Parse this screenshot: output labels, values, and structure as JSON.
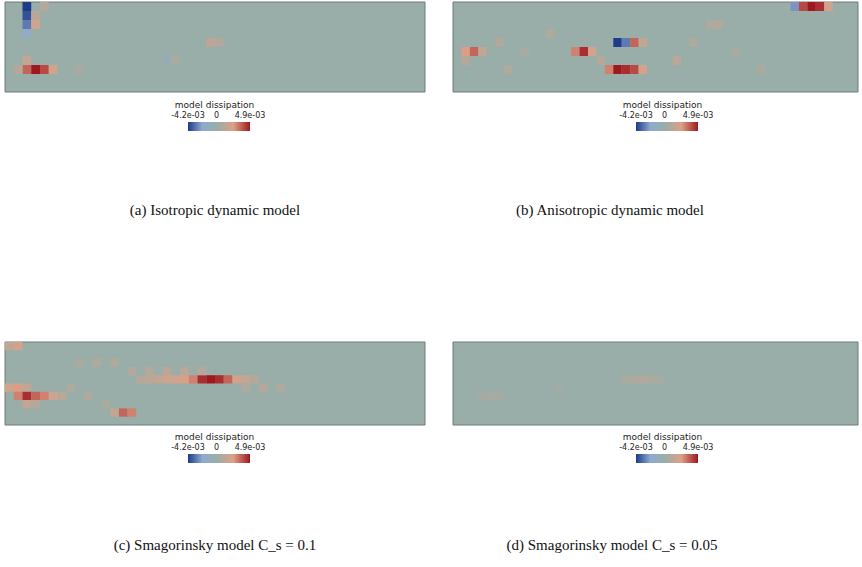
{
  "chart_data": [
    {
      "type": "heatmap",
      "title": "(a) Isotropic dynamic model",
      "xlim": [
        0,
        48
      ],
      "ylim": [
        0,
        10
      ],
      "tick_labels": false,
      "colorbar": {
        "title": "model dissipation",
        "range": [
          -0.0042,
          0.0049
        ],
        "ticks": [
          {
            "value": -0.0042,
            "label": "-4.2e-03"
          },
          0,
          {
            "value": 0.0049,
            "label": "4.9e-03"
          }
        ]
      },
      "cells": [
        [
          2,
          9,
          -0.0042
        ],
        [
          2,
          8,
          -0.0038
        ],
        [
          2,
          7,
          -0.003
        ],
        [
          2,
          6,
          -0.0015
        ],
        [
          3,
          8,
          0.0012
        ],
        [
          3,
          7,
          0.0018
        ],
        [
          4,
          9,
          0.001
        ],
        [
          2,
          2,
          0.0035
        ],
        [
          3,
          2,
          0.0049
        ],
        [
          4,
          2,
          0.004
        ],
        [
          5,
          2,
          0.002
        ],
        [
          2,
          3,
          0.0015
        ],
        [
          1,
          2,
          0.001
        ],
        [
          23,
          5,
          0.0012
        ],
        [
          24,
          5,
          0.0008
        ],
        [
          18,
          3,
          -0.0008
        ],
        [
          19,
          3,
          0.0006
        ],
        [
          8,
          2,
          0.0005
        ]
      ]
    },
    {
      "type": "heatmap",
      "title": "(b) Anisotropic dynamic model",
      "xlim": [
        0,
        48
      ],
      "ylim": [
        0,
        10
      ],
      "tick_labels": false,
      "colorbar": {
        "title": "model dissipation",
        "range": [
          -0.0042,
          0.0049
        ],
        "ticks": [
          {
            "value": -0.0042,
            "label": "-4.2e-03"
          },
          0,
          {
            "value": 0.0049,
            "label": "4.9e-03"
          }
        ]
      },
      "cells": [
        [
          1,
          4,
          0.0025
        ],
        [
          2,
          4,
          0.0035
        ],
        [
          3,
          4,
          0.0015
        ],
        [
          1,
          3,
          0.001
        ],
        [
          5,
          5,
          0.0008
        ],
        [
          8,
          4,
          0.0006
        ],
        [
          14,
          4,
          0.003
        ],
        [
          15,
          4,
          0.0045
        ],
        [
          16,
          4,
          0.002
        ],
        [
          19,
          5,
          -0.0042
        ],
        [
          20,
          5,
          -0.003
        ],
        [
          21,
          5,
          0.0035
        ],
        [
          22,
          5,
          0.0015
        ],
        [
          18,
          2,
          0.003
        ],
        [
          19,
          2,
          0.0049
        ],
        [
          20,
          2,
          0.0045
        ],
        [
          21,
          2,
          0.004
        ],
        [
          22,
          2,
          0.002
        ],
        [
          17,
          3,
          0.001
        ],
        [
          26,
          3,
          0.0012
        ],
        [
          28,
          5,
          0.0008
        ],
        [
          30,
          7,
          0.0007
        ],
        [
          31,
          7,
          0.0009
        ],
        [
          33,
          4,
          0.0006
        ],
        [
          40,
          9,
          -0.0025
        ],
        [
          41,
          9,
          0.004
        ],
        [
          42,
          9,
          0.0049
        ],
        [
          43,
          9,
          0.0045
        ],
        [
          44,
          9,
          0.002
        ],
        [
          36,
          2,
          0.0006
        ],
        [
          11,
          6,
          0.0008
        ],
        [
          6,
          2,
          0.0007
        ]
      ]
    },
    {
      "type": "heatmap",
      "title": "(c) Smagorinsky model C_s = 0.1",
      "xlim": [
        0,
        48
      ],
      "ylim": [
        0,
        10
      ],
      "tick_labels": false,
      "colorbar": {
        "title": "model dissipation",
        "range": [
          -0.0042,
          0.0049
        ],
        "ticks": [
          {
            "value": -0.0042,
            "label": "-4.2e-03"
          },
          0,
          {
            "value": 0.0049,
            "label": "4.9e-03"
          }
        ]
      },
      "cells": [
        [
          0,
          9,
          0.0015
        ],
        [
          1,
          9,
          0.002
        ],
        [
          0,
          4,
          0.002
        ],
        [
          1,
          4,
          0.0025
        ],
        [
          2,
          4,
          0.0015
        ],
        [
          1,
          3,
          0.003
        ],
        [
          2,
          3,
          0.0045
        ],
        [
          3,
          3,
          0.0035
        ],
        [
          4,
          3,
          0.003
        ],
        [
          5,
          3,
          0.0018
        ],
        [
          6,
          3,
          0.0012
        ],
        [
          2,
          2,
          0.0015
        ],
        [
          3,
          2,
          0.001
        ],
        [
          13,
          1,
          0.0035
        ],
        [
          14,
          1,
          0.003
        ],
        [
          12,
          1,
          0.0015
        ],
        [
          21,
          5,
          0.003
        ],
        [
          22,
          5,
          0.0045
        ],
        [
          23,
          5,
          0.0049
        ],
        [
          24,
          5,
          0.0045
        ],
        [
          25,
          5,
          0.0035
        ],
        [
          26,
          5,
          0.002
        ],
        [
          15,
          5,
          0.001
        ],
        [
          16,
          5,
          0.0012
        ],
        [
          17,
          5,
          0.0015
        ],
        [
          18,
          5,
          0.0018
        ],
        [
          19,
          5,
          0.002
        ],
        [
          20,
          5,
          0.0022
        ],
        [
          27,
          5,
          0.0015
        ],
        [
          28,
          5,
          0.001
        ],
        [
          14,
          6,
          0.0008
        ],
        [
          16,
          6,
          0.001
        ],
        [
          18,
          6,
          0.0012
        ],
        [
          20,
          6,
          0.0012
        ],
        [
          22,
          6,
          0.001
        ],
        [
          8,
          7,
          0.0006
        ],
        [
          10,
          7,
          0.0008
        ],
        [
          12,
          7,
          0.0008
        ],
        [
          27,
          4,
          0.0008
        ],
        [
          29,
          4,
          0.001
        ],
        [
          31,
          4,
          0.0008
        ],
        [
          9,
          3,
          0.0008
        ],
        [
          11,
          2,
          0.0006
        ],
        [
          7,
          4,
          0.0007
        ]
      ]
    },
    {
      "type": "heatmap",
      "title": "(d) Smagorinsky model C_s = 0.05",
      "xlim": [
        0,
        48
      ],
      "ylim": [
        0,
        10
      ],
      "tick_labels": false,
      "colorbar": {
        "title": "model dissipation",
        "range": [
          -0.0042,
          0.0049
        ],
        "ticks": [
          {
            "value": -0.0042,
            "label": "-4.2e-03"
          },
          0,
          {
            "value": 0.0049,
            "label": "4.9e-03"
          }
        ]
      },
      "cells": [
        [
          20,
          5,
          0.0006
        ],
        [
          21,
          5,
          0.0008
        ],
        [
          22,
          5,
          0.0009
        ],
        [
          23,
          5,
          0.0007
        ],
        [
          24,
          5,
          0.0005
        ],
        [
          3,
          3,
          0.0004
        ],
        [
          4,
          3,
          0.0005
        ],
        [
          5,
          3,
          0.0004
        ],
        [
          12,
          4,
          0.0003
        ]
      ]
    }
  ]
}
